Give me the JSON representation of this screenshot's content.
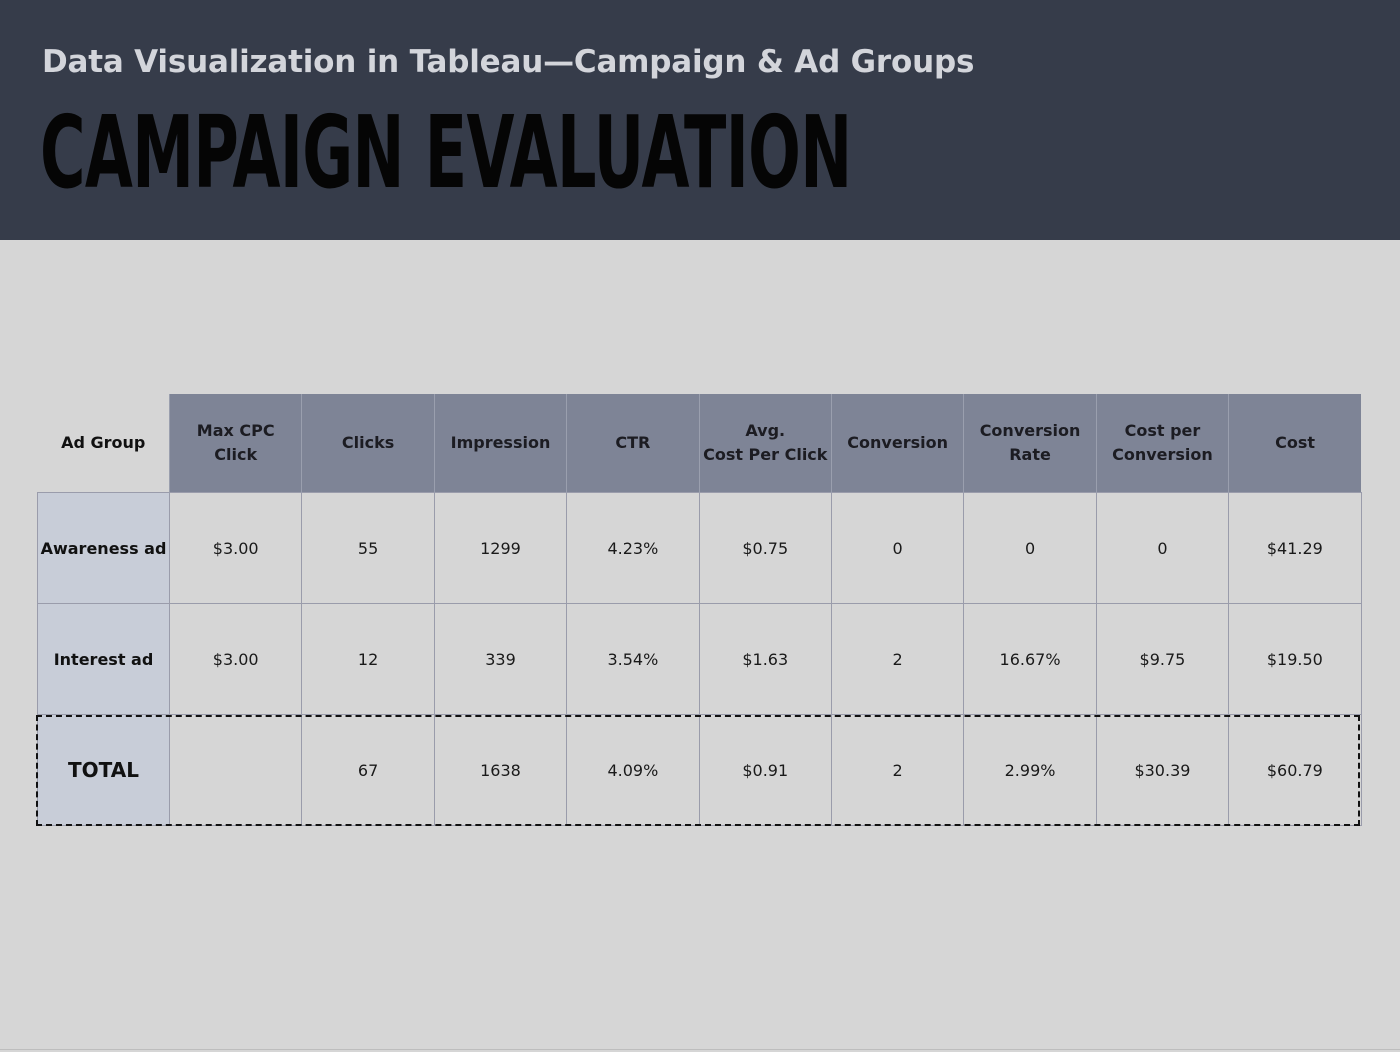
{
  "header": {
    "subtitle": "Data Visualization in Tableau—Campaign & Ad Groups",
    "title": "CAMPAIGN EVALUATION"
  },
  "table": {
    "columns": [
      "Ad Group",
      "Max CPC\nClick",
      "Clicks",
      "Impression",
      "CTR",
      "Avg.\nCost Per Click",
      "Conversion",
      "Conversion\nRate",
      "Cost per\nConversion",
      "Cost"
    ],
    "rows": [
      {
        "label": "Awareness ad",
        "cells": [
          "$3.00",
          "55",
          "1299",
          "4.23%",
          "$0.75",
          "0",
          "0",
          "0",
          "$41.29"
        ]
      },
      {
        "label": "Interest ad",
        "cells": [
          "$3.00",
          "12",
          "339",
          "3.54%",
          "$1.63",
          "2",
          "16.67%",
          "$9.75",
          "$19.50"
        ]
      }
    ],
    "total": {
      "label": "TOTAL",
      "cells": [
        "",
        "67",
        "1638",
        "4.09%",
        "$0.91",
        "2",
        "2.99%",
        "$30.39",
        "$60.79"
      ]
    }
  },
  "colors": {
    "header_bg": "#363c4a",
    "page_bg": "#d6d6d6",
    "column_header_bg": "#7e8496",
    "row_label_bg": "#c8cdd8"
  }
}
